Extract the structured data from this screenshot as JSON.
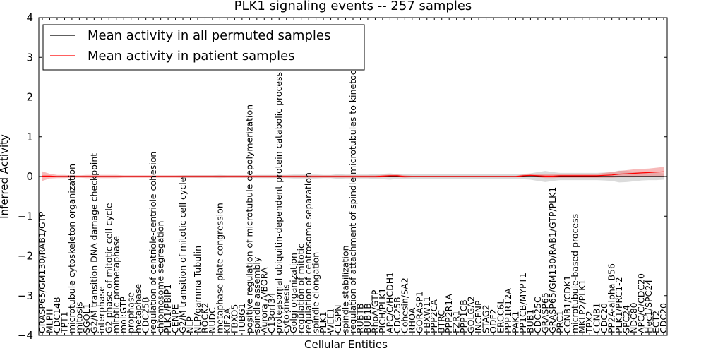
{
  "chart_data": {
    "type": "line",
    "title": "PLK1 signaling events -- 257 samples",
    "xlabel": "Cellular Entities",
    "ylabel": "Inferred Activity",
    "ylim": [
      -4,
      4
    ],
    "yticks": [
      -4,
      -3,
      -2,
      -1,
      0,
      1,
      2,
      3,
      4
    ],
    "ytick_labels": [
      "−4",
      "−3",
      "−2",
      "−1",
      "0",
      "1",
      "2",
      "3",
      "4"
    ],
    "legend_position": "top-left",
    "categories": [
      "GRASP65/GM130/RAB1/GTP",
      "MLPH",
      "CDC14B",
      "TPT1",
      "microtubule cytoskeleton organization",
      "mitosis",
      "SGOL1",
      "G2/M transition DNA damage checkpoint",
      "interphase",
      "G2 phase of mitotic cell cycle",
      "mitotic prometaphase",
      "mol:GTP",
      "prophase",
      "metaphase",
      "CDC25B",
      "regulation of centriole-centriole cohesion",
      "chromosome segregation",
      "PLK1/PBIP1",
      "CENPE",
      "G2/M transition of mitotic cell cycle",
      "NLP",
      "NLP/gamma Tubulin",
      "ROCK2",
      "NUDC",
      "metaphase plate congression",
      "KIF2A",
      "FBXO5",
      "TUBG1",
      "positive regulation of microtubule depolymerization",
      "spindle assembly",
      "Aurora A/BORA",
      "C13orf34",
      "proteasomal ubiquitin-dependent protein catabolic process",
      "cytokinesis",
      "Golgi organization",
      "regulation of mitotic",
      "regulation of centrosome separation",
      "spindle elongation",
      "PLK1",
      "WEE1",
      "CLSPN",
      "spindle stabilization",
      "regulation of attachment of spindle microtubules to kinetochore",
      "RUBTB",
      "BUB1B",
      "RhoA/GTP",
      "PICH/PLK1",
      "APC/C/HCDH1",
      "CDC25B",
      "Cohesin/SA2",
      "RHOA",
      "GORASP1",
      "FBXW11",
      "PPP2CA",
      "BTRC",
      "PPP2R1A",
      "FZR1",
      "PPP1CB",
      "GOLGA2",
      "INCENP",
      "STAG2",
      "ODF2",
      "ERCC6L",
      "PPP1R12A",
      "PAK1",
      "PP1CB/MYPT1",
      "BUB1",
      "CDC25C",
      "GRASP65",
      "GRASP65/GM130/RAB1/GTP/PLK1",
      "PRC1",
      "CCNB1/CDK1",
      "microtubule-based process",
      "MKLP2/PLK1",
      "TPX2",
      "CCNB1",
      "CDC20",
      "PP2A-alpha B56",
      "PLK1/PRC1-2",
      "SPC24",
      "NDC80",
      "APC/C/CDC20",
      "Hec1/SPC24",
      "ECT2",
      "CDC20"
    ],
    "series": [
      {
        "name": "Mean activity in all permuted samples",
        "color": "#000000",
        "band_color": "#b0b0b0",
        "values": [
          0,
          0,
          0,
          0,
          0,
          0,
          0,
          0,
          0,
          0,
          0,
          0,
          0,
          0,
          0,
          0,
          0,
          0,
          0,
          0,
          0,
          0,
          0,
          0,
          0,
          0,
          0,
          0,
          0,
          0,
          0,
          0,
          0,
          0,
          0,
          0,
          0,
          0,
          0,
          0,
          0,
          0,
          0,
          0,
          0,
          0,
          0,
          0,
          0,
          0,
          0,
          0,
          0,
          0,
          0,
          0,
          0,
          0,
          0,
          0,
          0,
          0,
          0,
          0,
          0,
          0,
          0,
          0,
          0,
          0,
          0,
          0,
          0,
          0,
          0,
          0,
          0,
          0,
          0,
          0,
          0,
          0,
          0,
          0,
          0
        ],
        "spread": [
          0,
          0,
          0.01,
          0.01,
          0.01,
          0.01,
          0.01,
          0.01,
          0.01,
          0.01,
          0.01,
          0.01,
          0.01,
          0.01,
          0.01,
          0.01,
          0.02,
          0.02,
          0.02,
          0.03,
          0.03,
          0.03,
          0.03,
          0.03,
          0.04,
          0.03,
          0.03,
          0.03,
          0.03,
          0.04,
          0.04,
          0.04,
          0.04,
          0.04,
          0.05,
          0.05,
          0.05,
          0.05,
          0.04,
          0.04,
          0.06,
          0.05,
          0.05,
          0.05,
          0.05,
          0.06,
          0.07,
          0.08,
          0.06,
          0.06,
          0.07,
          0.06,
          0.06,
          0.06,
          0.06,
          0.06,
          0.06,
          0.06,
          0.06,
          0.06,
          0.06,
          0.06,
          0.07,
          0.07,
          0.07,
          0.07,
          0.08,
          0.11,
          0.14,
          0.11,
          0.09,
          0.09,
          0.09,
          0.09,
          0.09,
          0.09,
          0.1,
          0.11,
          0.15,
          0.14,
          0.12,
          0.1,
          0.09,
          0.09,
          0.08
        ]
      },
      {
        "name": "Mean activity in patient samples",
        "color": "#ff0000",
        "band_color": "#f08080",
        "values": [
          0.01,
          0.01,
          0.0,
          0.0,
          0.0,
          0.0,
          0.0,
          0.0,
          0.0,
          0.0,
          0.0,
          0.0,
          0.0,
          0.0,
          0.0,
          0.0,
          0.0,
          0.0,
          0.0,
          0.0,
          0.0,
          0.0,
          0.0,
          0.0,
          0.0,
          0.0,
          0.0,
          0.0,
          0.0,
          0.0,
          0.0,
          0.0,
          0.0,
          0.0,
          0.0,
          0.0,
          0.0,
          0.0,
          0.0,
          0.0,
          0.0,
          0.0,
          0.0,
          0.0,
          0.0,
          0.0,
          0.01,
          0.02,
          0.02,
          0.0,
          0.0,
          0.0,
          0.0,
          0.0,
          0.0,
          0.0,
          0.0,
          0.0,
          0.0,
          0.0,
          0.0,
          0.0,
          0.0,
          0.0,
          0.0,
          0.02,
          0.03,
          0.02,
          0.01,
          0.01,
          0.02,
          0.02,
          0.02,
          0.02,
          0.02,
          0.02,
          0.03,
          0.04,
          0.06,
          0.07,
          0.08,
          0.09,
          0.1,
          0.11,
          0.12
        ],
        "spread": [
          0.12,
          0.06,
          0.04,
          0.04,
          0.03,
          0.03,
          0.04,
          0.04,
          0.04,
          0.04,
          0.04,
          0.03,
          0.03,
          0.03,
          0.03,
          0.03,
          0.03,
          0.03,
          0.03,
          0.03,
          0.03,
          0.03,
          0.03,
          0.03,
          0.03,
          0.03,
          0.03,
          0.03,
          0.03,
          0.03,
          0.03,
          0.03,
          0.03,
          0.03,
          0.03,
          0.03,
          0.03,
          0.03,
          0.03,
          0.03,
          0.03,
          0.03,
          0.03,
          0.03,
          0.03,
          0.03,
          0.03,
          0.03,
          0.03,
          0.03,
          0.02,
          0.02,
          0.02,
          0.02,
          0.02,
          0.02,
          0.02,
          0.02,
          0.02,
          0.02,
          0.02,
          0.02,
          0.02,
          0.02,
          0.02,
          0.03,
          0.04,
          0.04,
          0.05,
          0.05,
          0.05,
          0.05,
          0.05,
          0.05,
          0.05,
          0.05,
          0.06,
          0.07,
          0.08,
          0.09,
          0.1,
          0.1,
          0.1,
          0.11,
          0.12
        ]
      }
    ]
  }
}
